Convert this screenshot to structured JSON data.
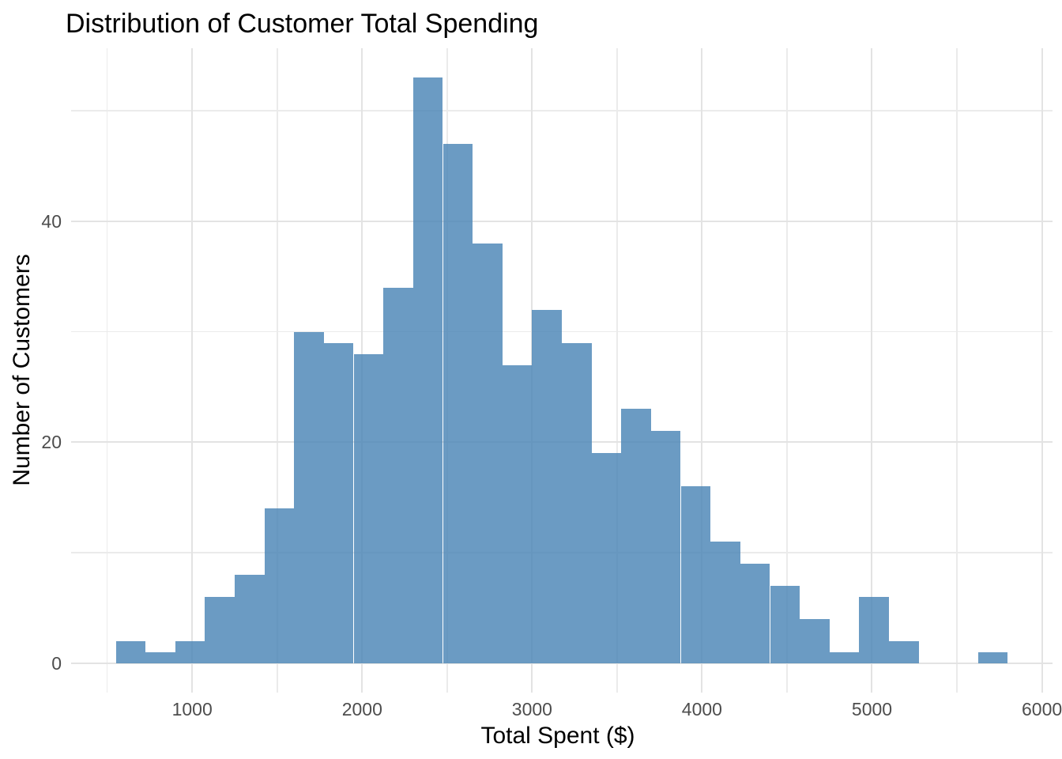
{
  "chart_data": {
    "type": "bar",
    "variant": "histogram",
    "title": "Distribution of Customer Total Spending",
    "xlabel": "Total Spent ($)",
    "ylabel": "Number of Customers",
    "bin_start": 550,
    "bin_width": 175,
    "counts": [
      2,
      1,
      2,
      6,
      8,
      14,
      30,
      29,
      28,
      34,
      53,
      47,
      38,
      27,
      32,
      29,
      19,
      23,
      21,
      16,
      11,
      9,
      7,
      4,
      1,
      6,
      2,
      0,
      0,
      1
    ],
    "x_ticks_major": [
      1000,
      2000,
      3000,
      4000,
      5000,
      6000
    ],
    "x_ticks_minor": [
      500,
      1500,
      2500,
      3500,
      4500,
      5500
    ],
    "y_ticks_major": [
      0,
      20,
      40
    ],
    "y_ticks_minor": [
      10,
      30,
      50
    ],
    "xlim": [
      287.5,
      6062.5
    ],
    "ylim": [
      -2.65,
      55.65
    ],
    "grid": true,
    "legend": "none",
    "colors": {
      "bar": "rgba(70,130,180,0.8)",
      "grid_major": "#e3e3e3",
      "grid_minor": "#ebebeb",
      "tick_label": "#4d4d4d",
      "axis_title": "#000000",
      "title": "#000000",
      "background": "#ffffff"
    }
  }
}
